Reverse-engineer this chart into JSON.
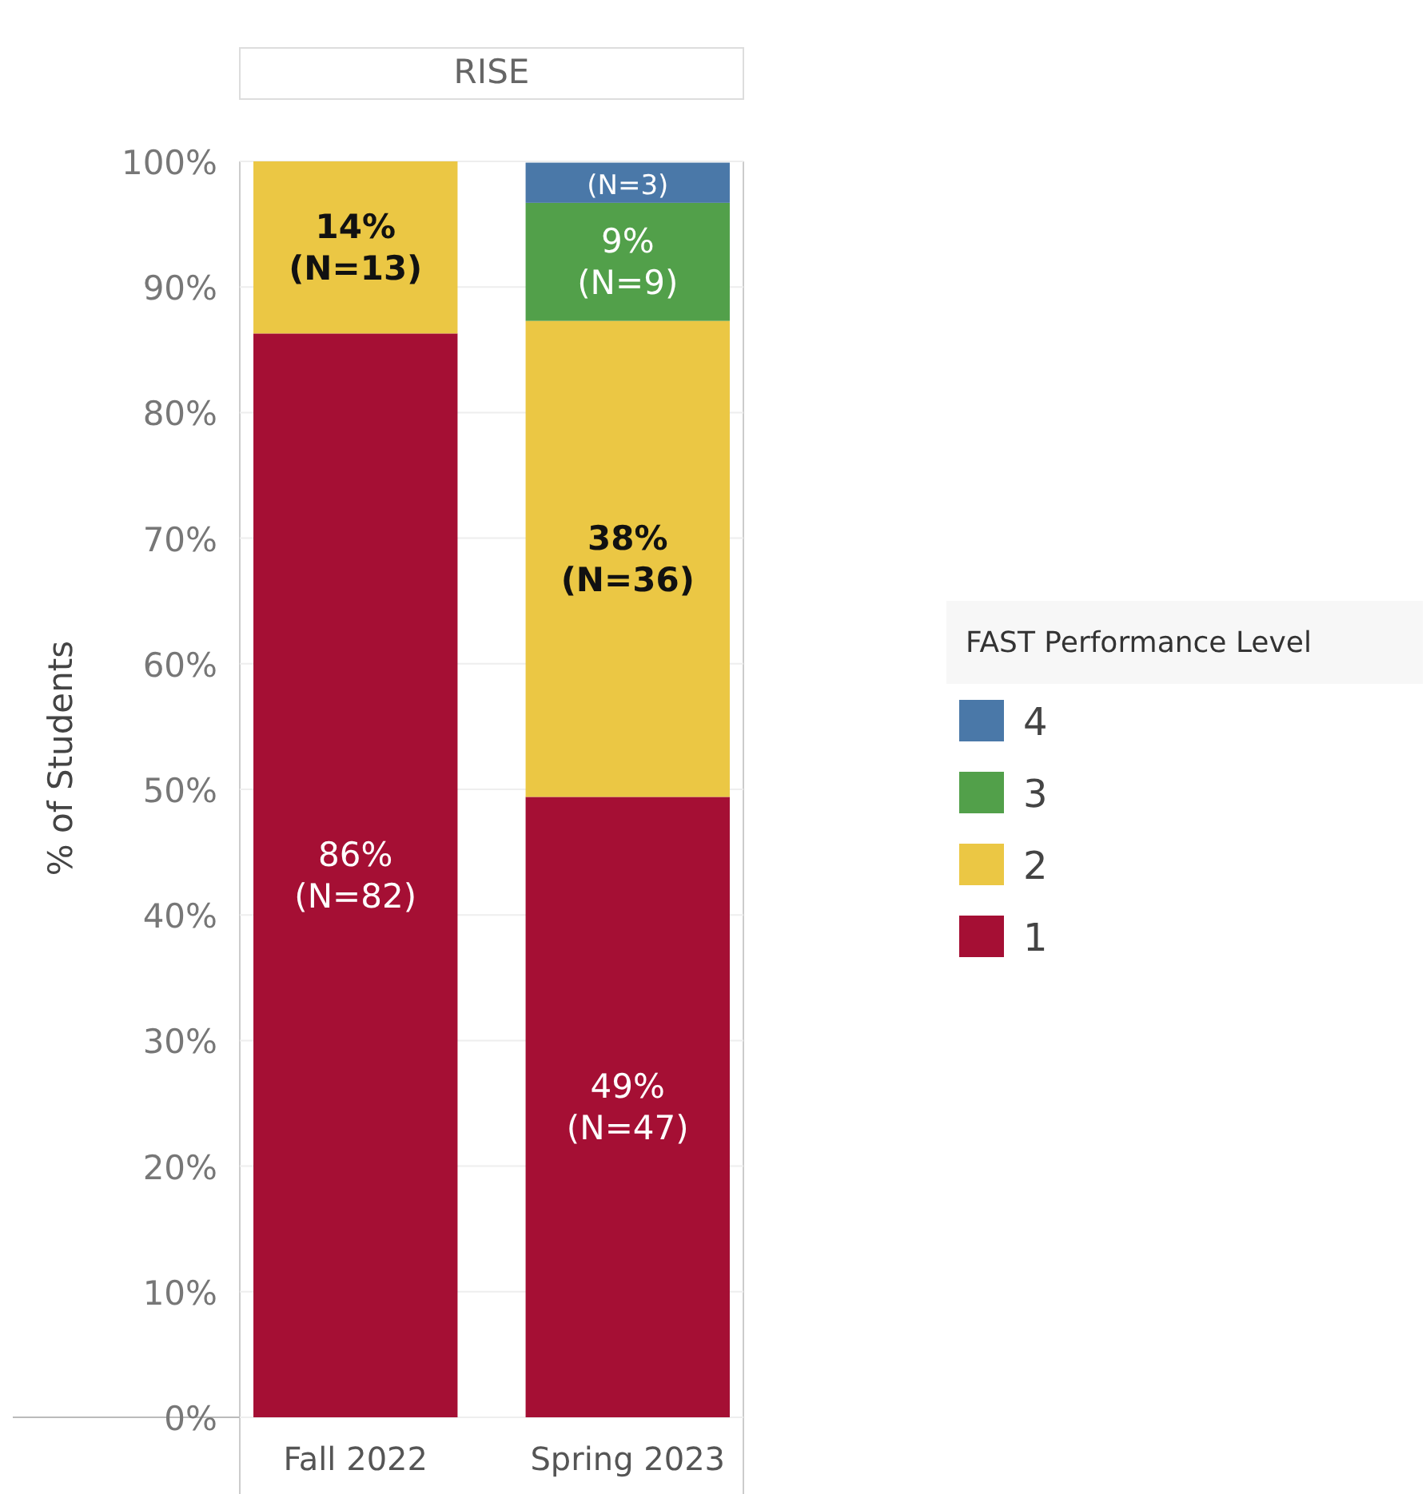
{
  "chart_data": {
    "type": "bar",
    "title": "RISE",
    "ylabel": "% of Students",
    "legend_title": "FAST Performance Level",
    "categories": [
      "Fall 2022",
      "Spring 2023"
    ],
    "stacked": true,
    "series": [
      {
        "name": "1",
        "color": "#a50f34",
        "values": [
          86.3,
          49.4
        ],
        "value_labels": [
          "86%\n(N=82)",
          "49%\n(N=47)"
        ]
      },
      {
        "name": "2",
        "color": "#ebc744",
        "values": [
          13.7,
          37.9
        ],
        "value_labels": [
          "14%\n(N=13)",
          "38%\n(N=36)"
        ]
      },
      {
        "name": "3",
        "color": "#52a04a",
        "values": [
          null,
          9.4
        ],
        "value_labels": [
          null,
          "9%\n(N=9)"
        ]
      },
      {
        "name": "4",
        "color": "#4a78a8",
        "values": [
          null,
          3.2
        ],
        "value_labels": [
          null,
          "(N=3)"
        ]
      }
    ],
    "ylim": [
      0,
      100
    ],
    "yticks": [
      {
        "value": 0,
        "label": "0%"
      },
      {
        "value": 10,
        "label": "10%"
      },
      {
        "value": 20,
        "label": "20%"
      },
      {
        "value": 30,
        "label": "30%"
      },
      {
        "value": 40,
        "label": "40%"
      },
      {
        "value": 50,
        "label": "50%"
      },
      {
        "value": 60,
        "label": "60%"
      },
      {
        "value": 70,
        "label": "70%"
      },
      {
        "value": 80,
        "label": "80%"
      },
      {
        "value": 90,
        "label": "90%"
      },
      {
        "value": 100,
        "label": "100%"
      }
    ],
    "grid": "y",
    "legend": "right"
  }
}
